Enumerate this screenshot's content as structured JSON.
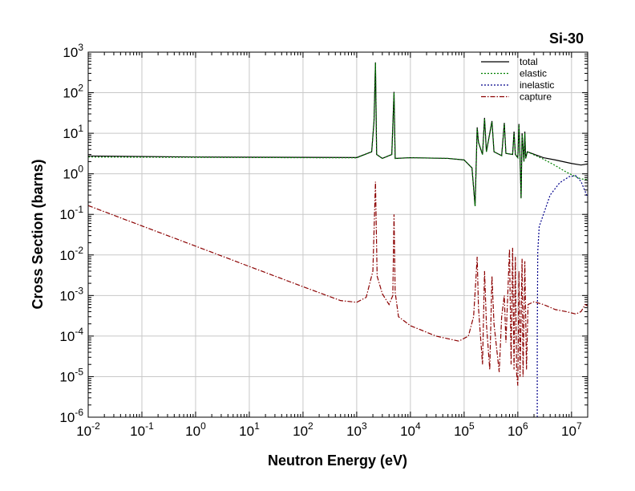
{
  "chart_data": {
    "type": "line",
    "title": "Si-30",
    "xlabel": "Neutron Energy (eV)",
    "ylabel": "Cross Section (barns)",
    "x_scale": "log",
    "y_scale": "log",
    "xlim": [
      0.01,
      20000000
    ],
    "ylim": [
      1e-06,
      1000
    ],
    "x_ticks": [
      {
        "base": "10",
        "exp": "-2"
      },
      {
        "base": "10",
        "exp": "-1"
      },
      {
        "base": "10",
        "exp": "0"
      },
      {
        "base": "10",
        "exp": "1"
      },
      {
        "base": "10",
        "exp": "2"
      },
      {
        "base": "10",
        "exp": "3"
      },
      {
        "base": "10",
        "exp": "4"
      },
      {
        "base": "10",
        "exp": "5"
      },
      {
        "base": "10",
        "exp": "6"
      },
      {
        "base": "10",
        "exp": "7"
      }
    ],
    "y_ticks": [
      {
        "base": "10",
        "exp": "-6"
      },
      {
        "base": "10",
        "exp": "-5"
      },
      {
        "base": "10",
        "exp": "-4"
      },
      {
        "base": "10",
        "exp": "-3"
      },
      {
        "base": "10",
        "exp": "-2"
      },
      {
        "base": "10",
        "exp": "-1"
      },
      {
        "base": "10",
        "exp": "0"
      },
      {
        "base": "10",
        "exp": "1"
      },
      {
        "base": "10",
        "exp": "2"
      },
      {
        "base": "10",
        "exp": "3"
      }
    ],
    "grid": true,
    "legend_position": "top-right",
    "series": [
      {
        "name": "total",
        "color": "#000000",
        "dash": "solid",
        "points": [
          [
            0.01,
            2.75
          ],
          [
            1,
            2.6
          ],
          [
            100,
            2.55
          ],
          [
            1000,
            2.52
          ],
          [
            1900,
            3.5
          ],
          [
            2100,
            20
          ],
          [
            2235,
            560
          ],
          [
            2350,
            3
          ],
          [
            3000,
            2.4
          ],
          [
            4500,
            3
          ],
          [
            4950,
            105
          ],
          [
            5200,
            2.4
          ],
          [
            10000,
            2.5
          ],
          [
            50000,
            2.4
          ],
          [
            100000,
            2.2
          ],
          [
            140000,
            1.4
          ],
          [
            160000,
            0.16
          ],
          [
            175000,
            14
          ],
          [
            185000,
            6
          ],
          [
            220000,
            3
          ],
          [
            240000,
            24
          ],
          [
            260000,
            3.5
          ],
          [
            330000,
            20
          ],
          [
            360000,
            3.5
          ],
          [
            500000,
            2.8
          ],
          [
            560000,
            18
          ],
          [
            600000,
            3.2
          ],
          [
            800000,
            3
          ],
          [
            850000,
            11
          ],
          [
            900000,
            3
          ],
          [
            1000000,
            2.5
          ],
          [
            1050000,
            17
          ],
          [
            1100000,
            2.5
          ],
          [
            1150000,
            0.25
          ],
          [
            1200000,
            10
          ],
          [
            1300000,
            2
          ],
          [
            1350000,
            11
          ],
          [
            1400000,
            2.4
          ],
          [
            1500000,
            3.5
          ],
          [
            3000000,
            2.5
          ],
          [
            5000000,
            2.2
          ],
          [
            10000000,
            1.8
          ],
          [
            15000000,
            1.65
          ],
          [
            20000000,
            1.75
          ]
        ]
      },
      {
        "name": "elastic",
        "color": "#008000",
        "dash": "dotted",
        "points": [
          [
            0.01,
            2.6
          ],
          [
            1,
            2.55
          ],
          [
            100,
            2.5
          ],
          [
            1000,
            2.48
          ],
          [
            1900,
            3.5
          ],
          [
            2100,
            20
          ],
          [
            2235,
            540
          ],
          [
            2350,
            3
          ],
          [
            3000,
            2.4
          ],
          [
            4500,
            3
          ],
          [
            4950,
            100
          ],
          [
            5200,
            2.4
          ],
          [
            10000,
            2.5
          ],
          [
            50000,
            2.4
          ],
          [
            100000,
            2.2
          ],
          [
            140000,
            1.4
          ],
          [
            160000,
            0.16
          ],
          [
            175000,
            13
          ],
          [
            185000,
            6
          ],
          [
            220000,
            3
          ],
          [
            240000,
            23
          ],
          [
            260000,
            3.5
          ],
          [
            330000,
            19
          ],
          [
            360000,
            3.5
          ],
          [
            500000,
            2.8
          ],
          [
            560000,
            17
          ],
          [
            600000,
            3.2
          ],
          [
            800000,
            3
          ],
          [
            850000,
            10
          ],
          [
            900000,
            3
          ],
          [
            1000000,
            2.5
          ],
          [
            1050000,
            16
          ],
          [
            1100000,
            2.5
          ],
          [
            1150000,
            0.25
          ],
          [
            1200000,
            9
          ],
          [
            1300000,
            2
          ],
          [
            1350000,
            10
          ],
          [
            1400000,
            2.4
          ],
          [
            1500000,
            3.5
          ],
          [
            3000000,
            2.3
          ],
          [
            5000000,
            1.6
          ],
          [
            8000000,
            1.1
          ],
          [
            12000000,
            0.85
          ],
          [
            15000000,
            0.75
          ],
          [
            20000000,
            0.72
          ]
        ]
      },
      {
        "name": "inelastic",
        "color": "#00008b",
        "dash": "dotted",
        "points": [
          [
            2300000,
            1e-06
          ],
          [
            2300000,
            0.0001
          ],
          [
            2350000,
            0.012
          ],
          [
            2500000,
            0.05
          ],
          [
            3000000,
            0.1
          ],
          [
            4000000,
            0.3
          ],
          [
            6000000,
            0.6
          ],
          [
            9000000,
            0.85
          ],
          [
            12000000,
            0.9
          ],
          [
            15000000,
            0.65
          ],
          [
            20000000,
            0.26
          ]
        ]
      },
      {
        "name": "capture",
        "color": "#8b0000",
        "dash": "dashdot",
        "points": [
          [
            0.01,
            0.165
          ],
          [
            0.1,
            0.052
          ],
          [
            1,
            0.0165
          ],
          [
            10,
            0.0052
          ],
          [
            100,
            0.00165
          ],
          [
            500,
            0.00075
          ],
          [
            1000,
            0.00068
          ],
          [
            1500,
            0.0009
          ],
          [
            2000,
            0.004
          ],
          [
            2235,
            0.64
          ],
          [
            2400,
            0.003
          ],
          [
            3000,
            0.0011
          ],
          [
            4000,
            0.0006
          ],
          [
            4700,
            0.001
          ],
          [
            4950,
            0.1
          ],
          [
            5200,
            0.0012
          ],
          [
            6000,
            0.0003
          ],
          [
            10000,
            0.00018
          ],
          [
            30000,
            0.0001
          ],
          [
            80000,
            7.5e-05
          ],
          [
            120000,
            0.0001
          ],
          [
            150000,
            0.0003
          ],
          [
            165000,
            0.0023
          ],
          [
            175000,
            0.009
          ],
          [
            185000,
            0.0005
          ],
          [
            220000,
            2e-05
          ],
          [
            240000,
            0.004
          ],
          [
            260000,
            0.0002
          ],
          [
            300000,
            1.5e-05
          ],
          [
            330000,
            0.003
          ],
          [
            360000,
            0.0002
          ],
          [
            450000,
            1.3e-05
          ],
          [
            500000,
            0.0003
          ],
          [
            560000,
            0.001
          ],
          [
            600000,
            7e-05
          ],
          [
            700000,
            0.014
          ],
          [
            750000,
            2e-05
          ],
          [
            800000,
            0.015
          ],
          [
            850000,
            1.5e-05
          ],
          [
            900000,
            0.009
          ],
          [
            950000,
            1.2e-05
          ],
          [
            1000000,
            6e-06
          ],
          [
            1050000,
            0.004
          ],
          [
            1100000,
            1e-05
          ],
          [
            1200000,
            0.008
          ],
          [
            1250000,
            1e-05
          ],
          [
            1350000,
            0.007
          ],
          [
            1450000,
            1.5e-05
          ],
          [
            1550000,
            0.0006
          ],
          [
            2000000,
            0.0007
          ],
          [
            3000000,
            0.0006
          ],
          [
            5000000,
            0.00045
          ],
          [
            8000000,
            0.0004
          ],
          [
            12000000,
            0.00035
          ],
          [
            15000000,
            0.0004
          ],
          [
            18000000,
            0.0006
          ],
          [
            20000000,
            0.00055
          ]
        ]
      }
    ]
  }
}
